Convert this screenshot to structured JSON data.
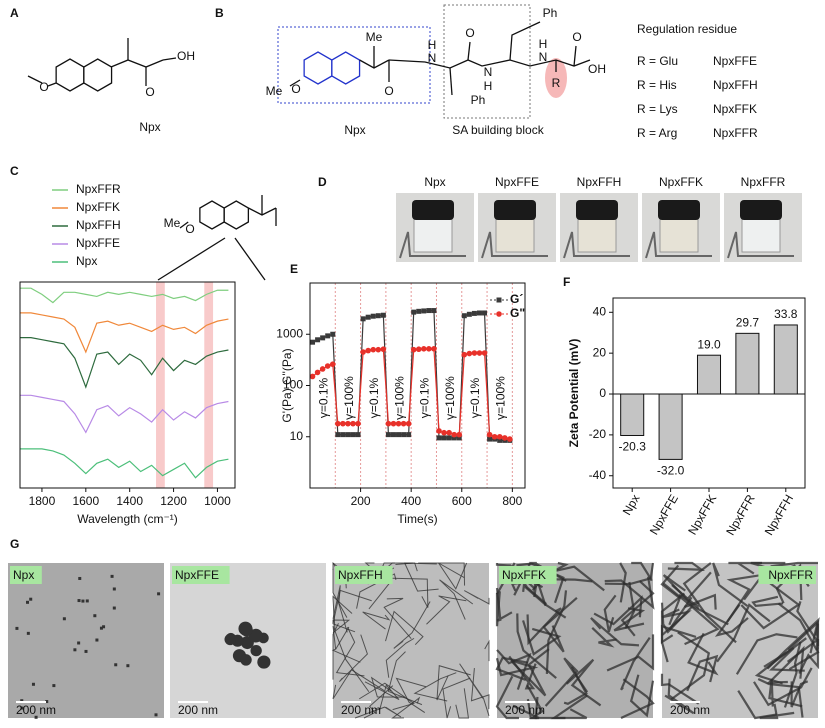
{
  "panel_labels": [
    "A",
    "B",
    "C",
    "D",
    "E",
    "F",
    "G"
  ],
  "panel_a": {
    "atoms": [
      "O",
      "OH",
      "O"
    ],
    "name": "Npx"
  },
  "panel_b": {
    "atoms": [
      "Me",
      "Me",
      "O",
      "O",
      "H",
      "N",
      "O",
      "N",
      "H",
      "Ph",
      "Ph",
      "H",
      "N",
      "O",
      "OH",
      "R"
    ],
    "left_caption": "Npx",
    "right_caption": "SA building block",
    "regulation_title": "Regulation residue",
    "residues": [
      [
        "R = Glu",
        "NpxFFE"
      ],
      [
        "R = His",
        "NpxFFH"
      ],
      [
        "R = Lys",
        "NpxFFK"
      ],
      [
        "R = Arg",
        "NpxFFR"
      ]
    ]
  },
  "panel_c_structure": {
    "atoms": [
      "Me",
      "O"
    ]
  },
  "panel_d": {
    "vials": [
      "Npx",
      "NpxFFE",
      "NpxFFH",
      "NpxFFK",
      "NpxFFR"
    ]
  },
  "chart_data": [
    {
      "type": "line",
      "xlabel": "Wavelength (cm⁻¹)",
      "x": [
        1900,
        1850,
        1800,
        1750,
        1700,
        1650,
        1600,
        1550,
        1500,
        1450,
        1400,
        1350,
        1300,
        1250,
        1200,
        1150,
        1100,
        1050,
        1000,
        950
      ],
      "xlim": [
        1900,
        920
      ],
      "xticks": [
        1800,
        1600,
        1400,
        1200,
        1000
      ],
      "ylim": [
        0,
        10
      ],
      "bands": [
        [
          1280,
          1240
        ],
        [
          1060,
          1020
        ]
      ],
      "series": [
        {
          "name": "NpxFFR",
          "color": "#7fce7f",
          "values": [
            9.7,
            9.7,
            9.4,
            9.0,
            9.5,
            9.5,
            9.4,
            9.3,
            9.5,
            9.4,
            9.5,
            9.4,
            9.3,
            9.4,
            9.2,
            9.3,
            9.1,
            9.4,
            9.6,
            9.6
          ]
        },
        {
          "name": "NpxFFK",
          "color": "#f0883a",
          "values": [
            8.5,
            8.5,
            8.4,
            8.3,
            8.2,
            7.8,
            6.6,
            8.0,
            8.1,
            7.9,
            8.0,
            7.8,
            7.6,
            7.9,
            7.7,
            7.8,
            7.5,
            7.9,
            8.1,
            8.2
          ]
        },
        {
          "name": "NpxFFH",
          "color": "#2e6b3e",
          "values": [
            7.3,
            7.3,
            7.2,
            7.1,
            7.0,
            6.3,
            4.9,
            6.5,
            6.6,
            6.0,
            6.5,
            6.2,
            5.5,
            6.3,
            5.7,
            6.2,
            6.0,
            6.4,
            6.6,
            6.7
          ]
        },
        {
          "name": "NpxFFE",
          "color": "#b88ae6",
          "values": [
            4.5,
            4.5,
            4.4,
            4.3,
            4.2,
            3.6,
            2.7,
            3.8,
            4.0,
            3.5,
            3.9,
            3.6,
            3.2,
            3.8,
            3.3,
            3.7,
            3.4,
            3.9,
            4.1,
            4.2
          ]
        },
        {
          "name": "Npx",
          "color": "#4cbf7a",
          "values": [
            1.9,
            1.9,
            1.9,
            1.8,
            1.6,
            1.2,
            0.7,
            1.2,
            1.4,
            1.0,
            1.3,
            0.8,
            1.1,
            0.6,
            0.9,
            1.2,
            0.5,
            1.0,
            1.3,
            1.4
          ]
        }
      ]
    },
    {
      "type": "line",
      "xlabel": "Time(s)",
      "ylabel": "G'(Pa) G''(Pa)",
      "log_y": true,
      "x": [
        10,
        30,
        50,
        70,
        90,
        110,
        130,
        150,
        170,
        190,
        210,
        230,
        250,
        270,
        290,
        310,
        330,
        350,
        370,
        390,
        410,
        430,
        450,
        470,
        490,
        510,
        530,
        550,
        570,
        590,
        610,
        630,
        650,
        670,
        690,
        710,
        730,
        750,
        770,
        790
      ],
      "xlim": [
        0,
        850
      ],
      "xticks": [
        200,
        400,
        600,
        800
      ],
      "ylim": [
        1,
        10000
      ],
      "yticks": [
        10,
        100,
        1000
      ],
      "dividers": [
        100,
        200,
        300,
        400,
        500,
        600,
        700,
        800
      ],
      "annotations": [
        {
          "text": "γ=0.1%",
          "color": "#222222"
        },
        {
          "text": "γ=100%",
          "color": "#999999"
        },
        {
          "text": "γ=0.1%",
          "color": "#222222"
        },
        {
          "text": "γ=100%",
          "color": "#999999"
        },
        {
          "text": "γ=0.1%",
          "color": "#222222"
        },
        {
          "text": "γ=100%",
          "color": "#999999"
        },
        {
          "text": "γ=0.1%",
          "color": "#222222"
        },
        {
          "text": "γ=100%",
          "color": "#999999"
        }
      ],
      "series": [
        {
          "name": "G´",
          "color": "#3a3a3a",
          "marker": "square",
          "values": [
            700,
            780,
            850,
            930,
            1000,
            11,
            11,
            11,
            11,
            11,
            2000,
            2150,
            2250,
            2300,
            2350,
            11,
            11,
            11,
            11,
            11,
            2700,
            2800,
            2850,
            2900,
            2900,
            9.5,
            9.5,
            9.5,
            9.5,
            9.5,
            2300,
            2450,
            2550,
            2600,
            2600,
            9,
            9,
            8.5,
            8.5,
            8.5
          ]
        },
        {
          "name": "G\"",
          "color": "#e8312a",
          "marker": "circle",
          "values": [
            150,
            180,
            210,
            240,
            260,
            18,
            18,
            18,
            18,
            18,
            450,
            480,
            500,
            500,
            510,
            18,
            18,
            18,
            18,
            18,
            500,
            510,
            520,
            520,
            520,
            13,
            12,
            12,
            11,
            11,
            400,
            420,
            430,
            430,
            430,
            11,
            10,
            10,
            9.5,
            9
          ]
        }
      ]
    },
    {
      "type": "bar",
      "ylabel": "Zeta Potential (mV)",
      "color": "#c4c4c4",
      "categories": [
        "Npx",
        "NpxFFE",
        "NpxFFK",
        "NpxFFR",
        "NpxFFH"
      ],
      "values": [
        -20.3,
        -32.0,
        19.0,
        29.7,
        33.8
      ],
      "value_labels": [
        "-20.3",
        "-32.0",
        "19.0",
        "29.7",
        "33.8"
      ],
      "ylim": [
        -46,
        47
      ],
      "yticks": [
        40,
        20,
        0,
        -20,
        -40
      ]
    }
  ],
  "panel_g": {
    "images": [
      "Npx",
      "NpxFFE",
      "NpxFFH",
      "NpxFFK",
      "NpxFFR"
    ],
    "scale_bar": "200 nm"
  }
}
